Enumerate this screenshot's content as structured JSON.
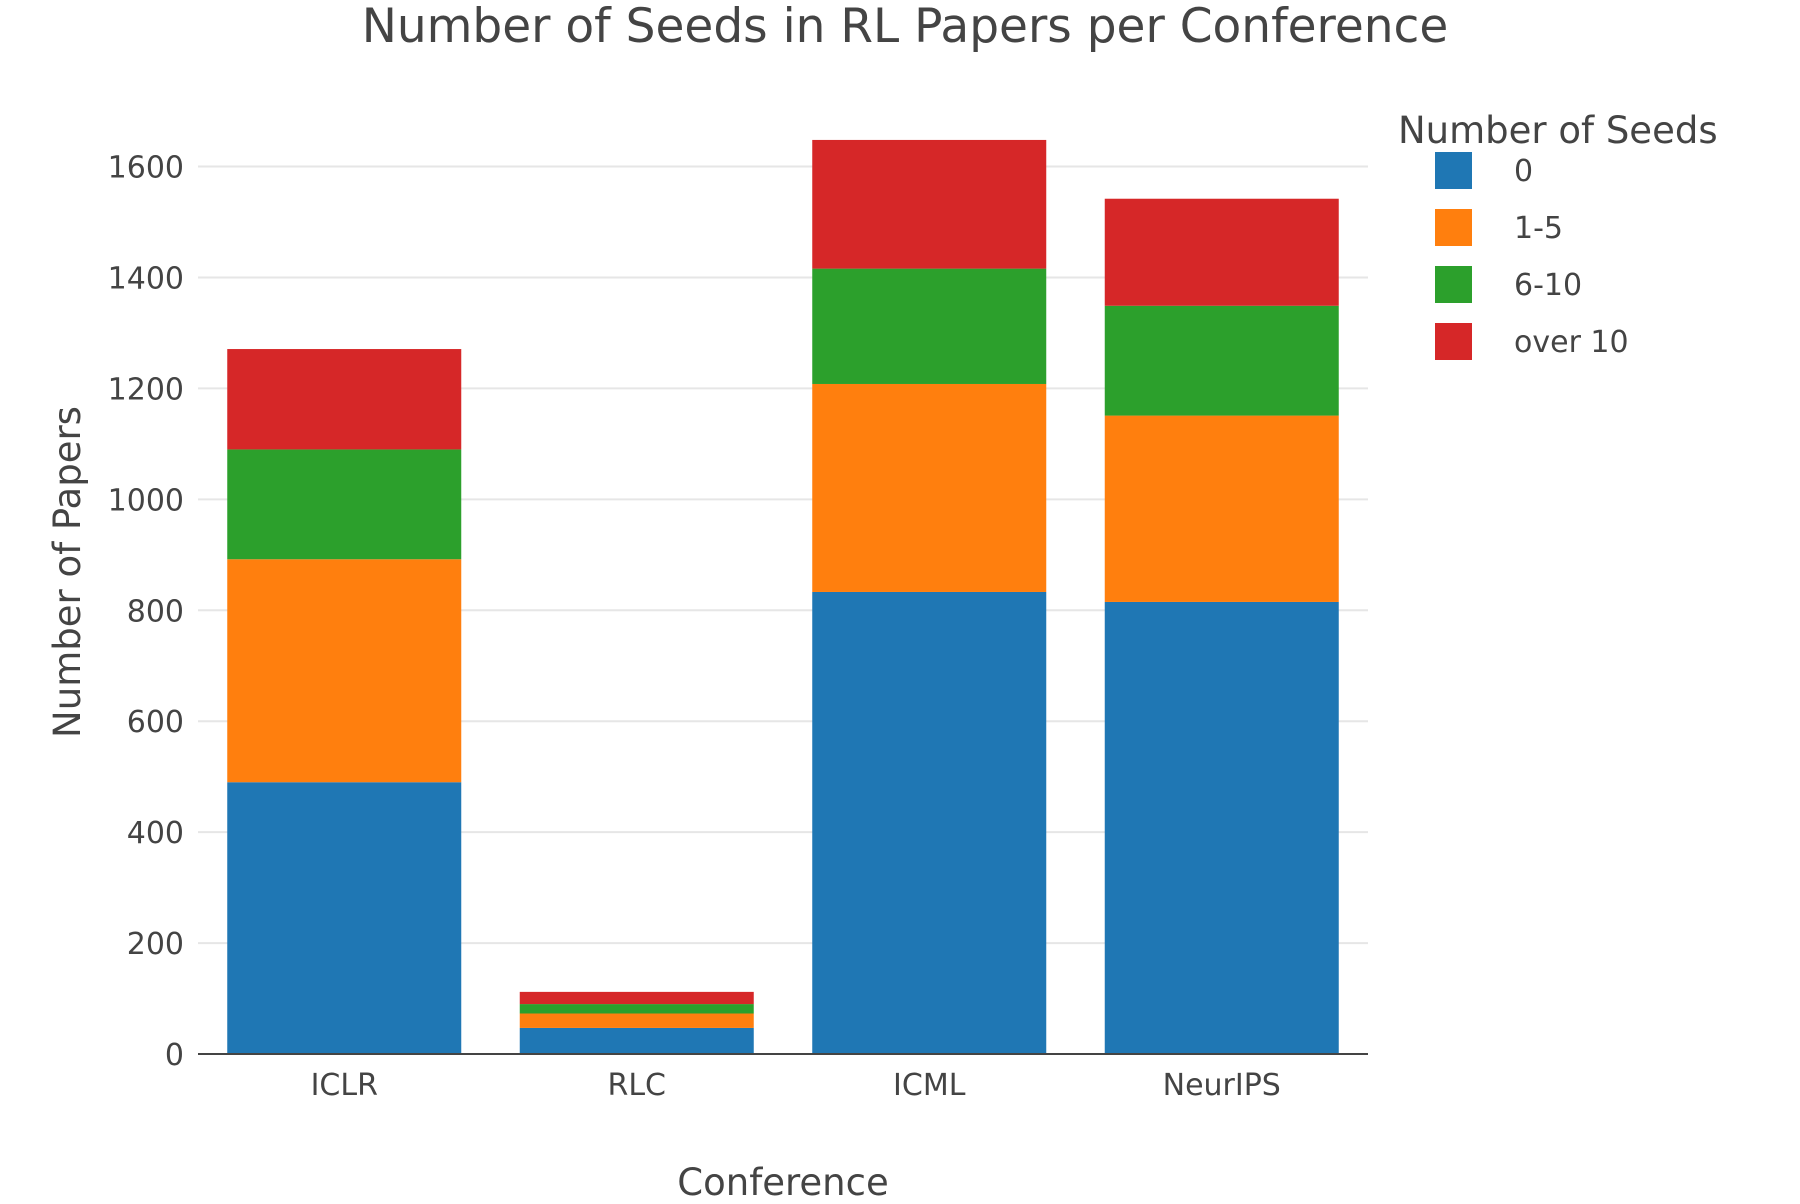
{
  "chart_data": {
    "type": "bar",
    "stacked": true,
    "title": "Number of Seeds in RL Papers per Conference",
    "xlabel": "Conference",
    "ylabel": "Number of Papers",
    "categories": [
      "ICLR",
      "RLC",
      "ICML",
      "NeurIPS"
    ],
    "ylim": [
      0,
      1720
    ],
    "yticks": [
      0,
      200,
      400,
      600,
      800,
      1000,
      1200,
      1400,
      1600
    ],
    "grid": true,
    "legend": {
      "title": "Number of Seeds",
      "placement": "top-right"
    },
    "series": [
      {
        "name": "0",
        "color": "#1f77b4",
        "values": [
          490,
          47,
          833,
          815
        ]
      },
      {
        "name": "1-5",
        "color": "#ff7f0e",
        "values": [
          402,
          26,
          375,
          336
        ]
      },
      {
        "name": "6-10",
        "color": "#2ca02c",
        "values": [
          198,
          17,
          208,
          198
        ]
      },
      {
        "name": "over 10",
        "color": "#d62728",
        "values": [
          181,
          22,
          232,
          193
        ]
      }
    ]
  }
}
